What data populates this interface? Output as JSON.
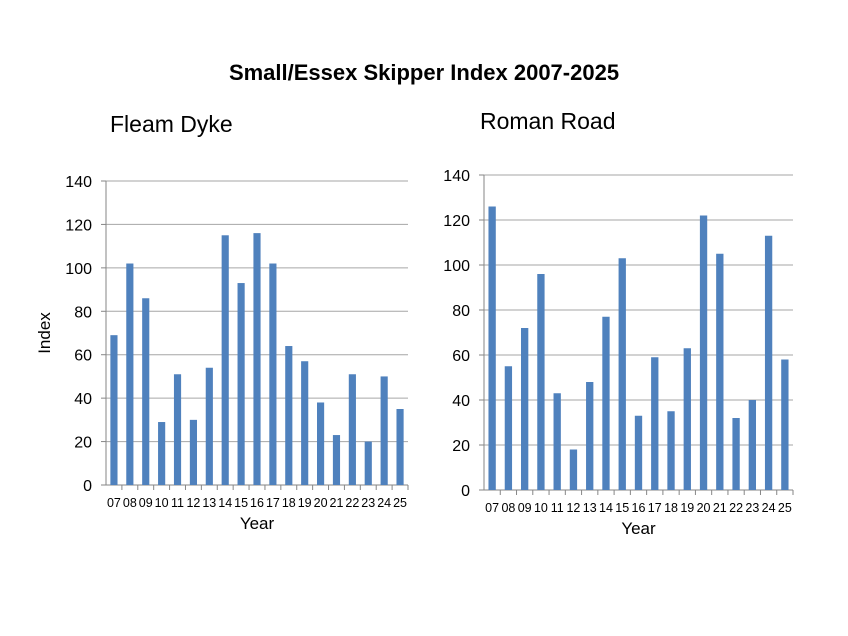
{
  "title": "Small/Essex Skipper Index 2007-2025",
  "colors": {
    "bar": "#4f81bd",
    "grid": "#a6a6a6"
  },
  "chart_data": [
    {
      "type": "bar",
      "title": "Fleam Dyke",
      "xlabel": "Year",
      "ylabel": "Index",
      "ylim": [
        0,
        140
      ],
      "yticks": [
        "0",
        "20",
        "40",
        "60",
        "80",
        "100",
        "120",
        "140"
      ],
      "grid": true,
      "categories": [
        "07",
        "08",
        "09",
        "10",
        "11",
        "12",
        "13",
        "14",
        "15",
        "16",
        "17",
        "18",
        "19",
        "20",
        "21",
        "22",
        "23",
        "24",
        "25"
      ],
      "values": [
        69,
        102,
        86,
        29,
        51,
        30,
        54,
        115,
        93,
        116,
        102,
        64,
        57,
        38,
        23,
        51,
        20,
        50,
        35
      ]
    },
    {
      "type": "bar",
      "title": "Roman Road",
      "xlabel": "Year",
      "ylabel": "",
      "ylim": [
        0,
        140
      ],
      "yticks": [
        "0",
        "20",
        "40",
        "60",
        "80",
        "100",
        "120",
        "140"
      ],
      "grid": true,
      "categories": [
        "07",
        "08",
        "09",
        "10",
        "11",
        "12",
        "13",
        "14",
        "15",
        "16",
        "17",
        "18",
        "19",
        "20",
        "21",
        "22",
        "23",
        "24",
        "25"
      ],
      "values": [
        126,
        55,
        72,
        96,
        43,
        18,
        48,
        77,
        103,
        33,
        59,
        35,
        63,
        122,
        105,
        32,
        40,
        113,
        58
      ]
    }
  ]
}
